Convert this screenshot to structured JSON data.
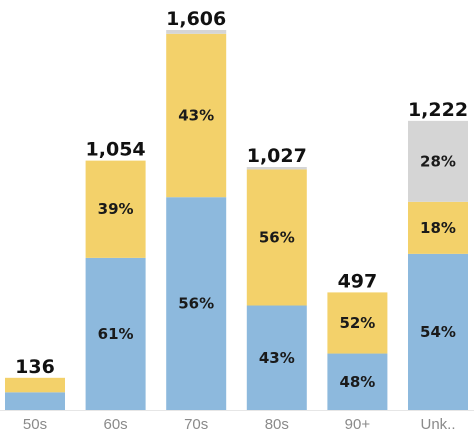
{
  "chart_data": {
    "type": "bar",
    "stacked": true,
    "title": "",
    "xlabel": "",
    "ylabel": "",
    "ylim": [
      0,
      1606
    ],
    "grid": false,
    "legend": "none",
    "categories": [
      "50s",
      "60s",
      "70s",
      "80s",
      "90+",
      "Unk.."
    ],
    "totals": [
      136,
      1054,
      1606,
      1027,
      497,
      1222
    ],
    "total_labels": [
      "136",
      "1,054",
      "1,606",
      "1,027",
      "497",
      "1,222"
    ],
    "series": [
      {
        "color": "#8db9dd",
        "shares": [
          0.55,
          0.61,
          0.56,
          0.43,
          0.48,
          0.54
        ],
        "labels": [
          "",
          "61%",
          "56%",
          "43%",
          "48%",
          "54%"
        ]
      },
      {
        "color": "#f3d16a",
        "shares": [
          0.45,
          0.39,
          0.43,
          0.56,
          0.52,
          0.18
        ],
        "labels": [
          "",
          "39%",
          "43%",
          "56%",
          "52%",
          "18%"
        ]
      },
      {
        "color": "#d5d5d5",
        "shares": [
          0.0,
          0.0,
          0.01,
          0.01,
          0.0,
          0.28
        ],
        "labels": [
          "",
          "",
          "",
          "",
          "",
          "28%"
        ]
      }
    ]
  }
}
